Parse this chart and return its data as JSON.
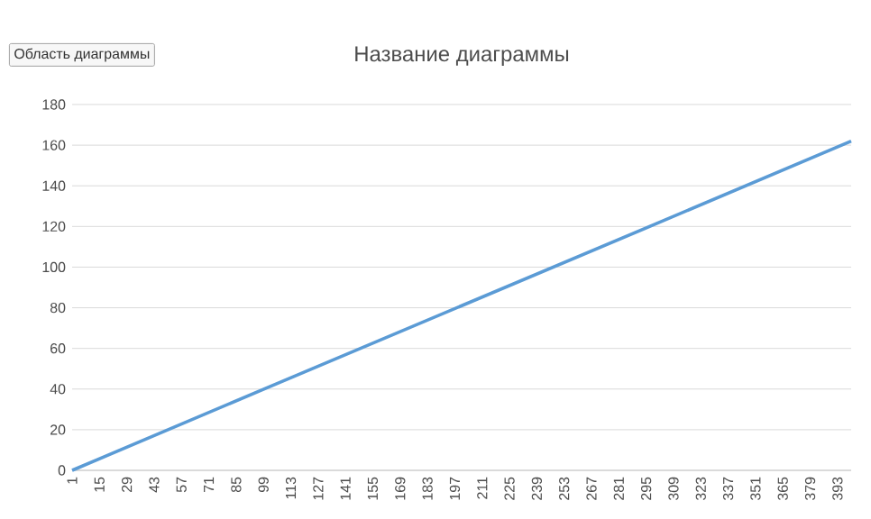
{
  "chart_data": {
    "type": "line",
    "title": "Название диаграммы",
    "annotations": [
      "Область диаграммы"
    ],
    "x": [
      1,
      100,
      200,
      300,
      400
    ],
    "series": [
      {
        "color": "#5b9bd5",
        "values": [
          0,
          40.3,
          80.8,
          121.3,
          162
        ]
      }
    ],
    "xlim": [
      1,
      400
    ],
    "xticks": [
      1,
      15,
      29,
      43,
      57,
      71,
      85,
      99,
      113,
      127,
      141,
      155,
      169,
      183,
      197,
      211,
      225,
      239,
      253,
      267,
      281,
      295,
      309,
      323,
      337,
      351,
      365,
      379,
      393
    ],
    "ylim": [
      0,
      180
    ],
    "yticks": [
      0,
      20,
      40,
      60,
      80,
      100,
      120,
      140,
      160,
      180
    ],
    "grid": "y",
    "marker": "none",
    "line_style": "solid"
  }
}
